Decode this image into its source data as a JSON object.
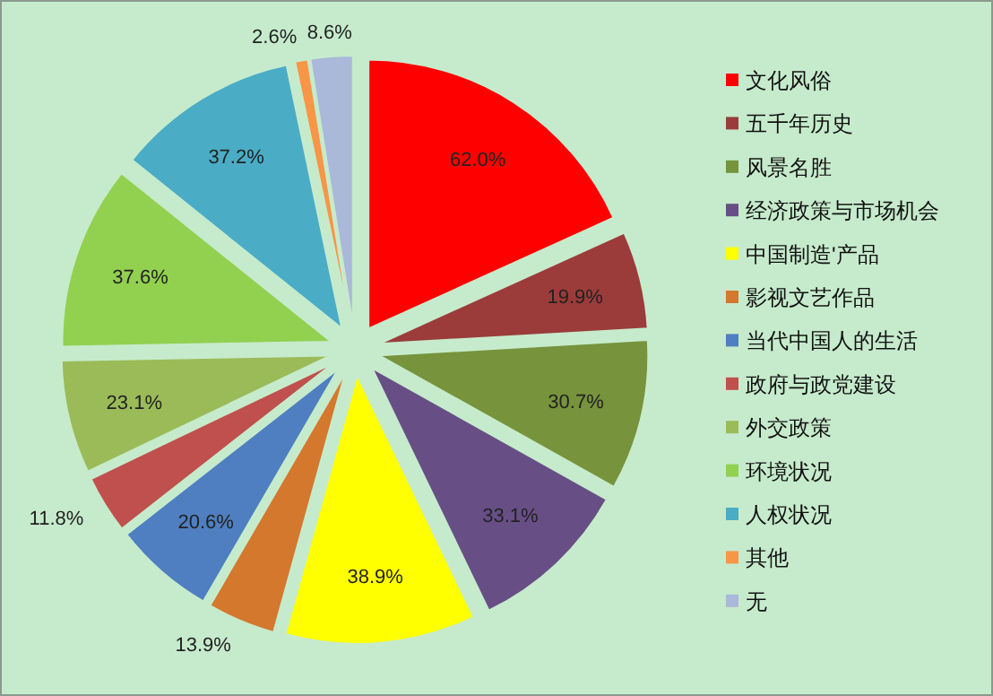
{
  "chart_data": {
    "type": "pie",
    "categories": [
      "文化风俗",
      "五千年历史",
      "风景名胜",
      "经济政策与市场机会",
      "中国制造'产品",
      "影视文艺作品",
      "当代中国人的生活",
      "政府与政党建设",
      "外交政策",
      "环境状况",
      "人权状况",
      "其他",
      "无"
    ],
    "values": [
      62.0,
      19.9,
      30.7,
      33.1,
      38.9,
      13.9,
      20.6,
      11.8,
      23.1,
      37.6,
      37.2,
      2.6,
      8.6
    ],
    "colors": [
      "#ff0000",
      "#9b3c3a",
      "#77933c",
      "#674f86",
      "#ffff00",
      "#d4782e",
      "#4f7fc0",
      "#c0504d",
      "#9bbb59",
      "#92d050",
      "#4bacc6",
      "#f79646",
      "#aab8da"
    ],
    "value_labels": [
      "62.0%",
      "19.9%",
      "30.7%",
      "33.1%",
      "38.9%",
      "13.9%",
      "20.6%",
      "11.8%",
      "23.1%",
      "37.6%",
      "37.2%",
      "2.6%",
      "8.6%"
    ],
    "legend": "right"
  }
}
